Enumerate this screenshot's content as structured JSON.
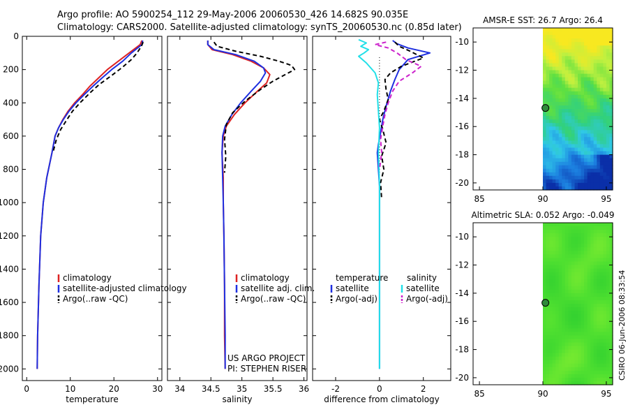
{
  "header": {
    "line1": "Argo profile: AO 5900254_112 29-May-2006 20060530_426 14.682S 90.035E",
    "line2": "Climatology: CARS2000. Satellite-adjusted climatology: synTS_20060530.nc (0.85d later)"
  },
  "side_stamp": "CSIRO 06-Jun-2006 08:33:54",
  "colors": {
    "climatology": "#dd2222",
    "satellite": "#1e2fe0",
    "argo": "#000000",
    "salinity_sat": "#22e0e8",
    "salinity_argo": "#cc22cc"
  },
  "chart_data": [
    {
      "type": "line",
      "id": "temperature",
      "xlabel": "temperature",
      "ylabel": "",
      "xlim": [
        -1,
        31
      ],
      "ylim": [
        2070,
        0
      ],
      "y_reversed": true,
      "xticks": [
        0,
        10,
        20,
        30
      ],
      "yticks": [
        0,
        200,
        400,
        600,
        800,
        1000,
        1200,
        1400,
        1600,
        1800,
        2000
      ],
      "legend": {
        "position": "lower-right",
        "entries": [
          "climatology",
          "satellite-adjusted climatology",
          "Argo(..raw -QC)"
        ]
      },
      "series": [
        {
          "name": "climatology",
          "color": "#dd2222",
          "style": "solid",
          "x": [
            26.4,
            26.0,
            23.5,
            21.0,
            18.5,
            16.5,
            14.5,
            12.8,
            11.0,
            9.5,
            8.3,
            7.3,
            6.5,
            5.8,
            4.6,
            3.8,
            3.2,
            2.8,
            2.5,
            2.4
          ],
          "y": [
            25,
            50,
            100,
            150,
            200,
            250,
            300,
            350,
            400,
            450,
            500,
            550,
            600,
            700,
            850,
            1000,
            1200,
            1500,
            1800,
            2000
          ]
        },
        {
          "name": "satellite-adjusted climatology",
          "color": "#1e2fe0",
          "style": "solid",
          "x": [
            26.6,
            26.4,
            24.0,
            22.0,
            19.5,
            17.3,
            15.2,
            13.2,
            11.3,
            9.7,
            8.4,
            7.3,
            6.5,
            5.8,
            4.6,
            3.8,
            3.2,
            2.8,
            2.5,
            2.4
          ],
          "y": [
            25,
            50,
            100,
            150,
            200,
            250,
            300,
            350,
            400,
            450,
            500,
            550,
            600,
            700,
            850,
            1000,
            1200,
            1500,
            1800,
            2000
          ]
        },
        {
          "name": "Argo(..raw -QC)",
          "color": "#000000",
          "style": "dashed",
          "x": [
            26.7,
            26.3,
            25.3,
            24.0,
            22.0,
            19.5,
            16.6,
            14.5,
            12.4,
            10.5,
            9.0,
            7.8,
            6.8,
            6.0
          ],
          "y": [
            35,
            60,
            100,
            140,
            185,
            235,
            290,
            340,
            395,
            450,
            510,
            560,
            620,
            700
          ]
        }
      ]
    },
    {
      "type": "line",
      "id": "salinity",
      "xlabel": "salinity",
      "xlim": [
        33.8,
        36.05
      ],
      "ylim": [
        2070,
        0
      ],
      "y_reversed": true,
      "xticks": [
        34,
        34.5,
        35,
        35.5,
        36
      ],
      "xtick_labels": [
        "34",
        "34.5",
        "35",
        "35.5",
        "36"
      ],
      "legend": {
        "position": "lower-right",
        "entries": [
          "climatology",
          "satellite adj. clim.",
          "Argo(..raw -QC)"
        ]
      },
      "annotation": [
        "US ARGO PROJECT",
        "PI: STEPHEN RISER"
      ],
      "series": [
        {
          "name": "climatology",
          "color": "#dd2222",
          "style": "solid",
          "x": [
            34.45,
            34.45,
            34.52,
            34.85,
            35.15,
            35.35,
            35.45,
            35.4,
            35.25,
            35.05,
            34.88,
            34.75,
            34.7,
            34.68,
            34.7,
            34.7,
            34.71,
            34.72,
            34.72,
            34.73
          ],
          "y": [
            25,
            50,
            80,
            110,
            150,
            190,
            230,
            280,
            330,
            400,
            470,
            540,
            600,
            700,
            850,
            1000,
            1200,
            1500,
            1800,
            2000
          ]
        },
        {
          "name": "satellite adj. clim.",
          "color": "#1e2fe0",
          "style": "solid",
          "x": [
            34.45,
            34.45,
            34.55,
            34.9,
            35.2,
            35.35,
            35.38,
            35.3,
            35.15,
            34.98,
            34.84,
            34.73,
            34.69,
            34.68,
            34.69,
            34.7,
            34.71,
            34.72,
            34.73,
            34.73
          ],
          "y": [
            25,
            50,
            80,
            110,
            150,
            190,
            220,
            270,
            330,
            400,
            470,
            540,
            600,
            700,
            850,
            1000,
            1200,
            1500,
            1800,
            2000
          ]
        },
        {
          "name": "Argo(..raw -QC)",
          "color": "#000000",
          "style": "dashed",
          "x": [
            34.55,
            34.6,
            34.9,
            35.3,
            35.6,
            35.8,
            35.85,
            35.7,
            35.5,
            35.3,
            35.05,
            34.85,
            34.75,
            34.72,
            34.74,
            34.72
          ],
          "y": [
            35,
            60,
            90,
            120,
            150,
            175,
            200,
            230,
            270,
            320,
            390,
            460,
            530,
            620,
            720,
            820
          ]
        }
      ]
    },
    {
      "type": "line",
      "id": "difference",
      "xlabel": "difference from climatology",
      "xlim": [
        -3.05,
        3.25
      ],
      "ylim": [
        2070,
        0
      ],
      "y_reversed": true,
      "xticks": [
        -2,
        0,
        2
      ],
      "legend": {
        "position": "lower-center",
        "temperature_title": "temperature",
        "salinity_title": "salinity",
        "temperature_entries": [
          "satellite",
          "Argo(-adj)"
        ],
        "salinity_entries": [
          "satellite",
          "Argo(-adj)"
        ]
      },
      "series": [
        {
          "name": "temperature satellite",
          "color": "#1e2fe0",
          "style": "solid",
          "x": [
            0.6,
            0.8,
            1.3,
            2.3,
            1.3,
            0.9,
            0.7,
            0.5,
            0.3,
            0.15,
            0.05,
            -0.05,
            -0.1,
            -0.05,
            0.0,
            0.0,
            0.0,
            0.0,
            0.0
          ],
          "y": [
            25,
            45,
            70,
            100,
            140,
            200,
            260,
            330,
            420,
            500,
            580,
            650,
            700,
            800,
            900,
            1000,
            1300,
            1700,
            2000
          ]
        },
        {
          "name": "temperature Argo(-adj)",
          "color": "#000000",
          "style": "dashed",
          "x": [
            0.7,
            0.9,
            1.4,
            2.0,
            1.0,
            0.5,
            0.25,
            0.3,
            0.4,
            0.2,
            0.0,
            0.15,
            0.3,
            0.1,
            0.2,
            0.05,
            0.1
          ],
          "y": [
            35,
            60,
            90,
            130,
            180,
            220,
            260,
            320,
            380,
            450,
            500,
            560,
            640,
            720,
            800,
            880,
            980
          ]
        },
        {
          "name": "salinity satellite",
          "color": "#22e0e8",
          "style": "solid",
          "x": [
            -0.95,
            -0.6,
            -0.85,
            -0.5,
            -0.7,
            -0.95,
            -0.6,
            -0.2,
            -0.05,
            -0.1,
            -0.05,
            0.0,
            -0.05,
            0.0,
            0.0,
            0.0,
            0.0,
            0.0
          ],
          "y": [
            20,
            40,
            60,
            80,
            100,
            120,
            160,
            220,
            280,
            350,
            450,
            550,
            700,
            900,
            1100,
            1400,
            1700,
            2000
          ]
        },
        {
          "name": "salinity Argo(-adj)",
          "color": "#cc22cc",
          "style": "dashed",
          "x": [
            0.3,
            -0.2,
            0.4,
            0.8,
            1.2,
            1.9,
            1.5,
            0.9,
            0.6,
            0.4,
            0.25,
            0.15,
            0.05,
            0.1,
            0.0
          ],
          "y": [
            35,
            50,
            70,
            100,
            140,
            180,
            220,
            270,
            330,
            400,
            470,
            540,
            620,
            700,
            800
          ]
        }
      ]
    },
    {
      "type": "heatmap",
      "id": "sst_map",
      "title": "AMSR-E SST: 26.7 Argo: 26.4",
      "xlim": [
        84.5,
        95.5
      ],
      "ylim": [
        -20.5,
        -9.0
      ],
      "xticks": [
        85,
        90,
        95
      ],
      "yticks": [
        -10,
        -12,
        -14,
        -16,
        -18,
        -20
      ],
      "data_xrange": [
        90,
        95.5
      ],
      "colorscale": [
        "#0a2fa8",
        "#1c80e0",
        "#30c8e8",
        "#30d080",
        "#60e040",
        "#c0f040",
        "#f8e820"
      ],
      "value_range": [
        23.5,
        29.0
      ],
      "marker": {
        "lon": 90.035,
        "lat": -14.682
      }
    },
    {
      "type": "heatmap",
      "id": "sla_map",
      "title": "Altimetric SLA: 0.052 Argo: -0.049",
      "xlim": [
        84.5,
        95.5
      ],
      "ylim": [
        -20.5,
        -9.0
      ],
      "xticks": [
        85,
        90,
        95
      ],
      "yticks": [
        -10,
        -12,
        -14,
        -16,
        -18,
        -20
      ],
      "data_xrange": [
        90,
        95.5
      ],
      "colorscale": [
        "#20c040",
        "#30d030",
        "#50e030",
        "#80ec30",
        "#b8f030"
      ],
      "value_range": [
        -0.1,
        0.15
      ],
      "marker": {
        "lon": 90.035,
        "lat": -14.682
      }
    }
  ]
}
